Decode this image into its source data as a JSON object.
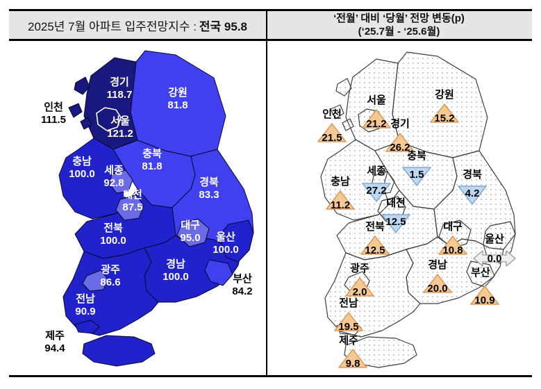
{
  "header": {
    "left": {
      "prefix": "2025년 7월 아파트 입주전망지수 : ",
      "bold": "전국 95.8"
    },
    "right": {
      "line1": "‘전월’ 대비 ‘당월’ 전망 변동(p)",
      "line2": "(‘25.7월 - ‘25.6월)"
    }
  },
  "colors": {
    "tier_navy": "#18187E",
    "tier_dark": "#2222CC",
    "tier_bright": "#4040F0",
    "tier_light": "#6B6BE8",
    "up_fill": "#F6C893",
    "up_stroke": "#DB9A55",
    "down_fill": "#BFD8F2",
    "down_stroke": "#82A9D2",
    "flat_fill": "#EEEEEE",
    "flat_stroke": "#999999",
    "header_bg": "#E6E6E6",
    "map_stroke_left": "#06062E",
    "map_stroke_right": "#3F3F3F",
    "dot_color": "#9AA7B8",
    "label_white": "#FFFFFF",
    "label_black": "#000000"
  },
  "chart_data": [
    {
      "type": "choropleth-map",
      "title": "2025년 7월 아파트 입주전망지수 : 전국 95.8",
      "national_value": 95.8,
      "regions": [
        {
          "id": "gangwon",
          "name": "강원",
          "value": "81.8",
          "tier": "bright",
          "label_color": "white"
        },
        {
          "id": "gyeonggi",
          "name": "경기",
          "value": "118.7",
          "tier": "navy",
          "label_color": "white"
        },
        {
          "id": "chungbuk",
          "name": "충북",
          "value": "81.8",
          "tier": "bright",
          "label_color": "white"
        },
        {
          "id": "chungnam",
          "name": "충남",
          "value": "100.0",
          "tier": "dark",
          "label_color": "white"
        },
        {
          "id": "gyeongbuk",
          "name": "경북",
          "value": "83.3",
          "tier": "bright",
          "label_color": "white"
        },
        {
          "id": "jeonbuk",
          "name": "전북",
          "value": "100.0",
          "tier": "dark",
          "label_color": "white"
        },
        {
          "id": "gyeongnam",
          "name": "경남",
          "value": "100.0",
          "tier": "dark",
          "label_color": "white"
        },
        {
          "id": "jeonnam",
          "name": "전남",
          "value": "90.9",
          "tier": "dark",
          "label_color": "white"
        },
        {
          "id": "sejong",
          "name": "세종",
          "value": "92.8",
          "tier": "light",
          "label_color": "white"
        },
        {
          "id": "daejeon",
          "name": "대전",
          "value": "87.5",
          "tier": "light",
          "label_color": "white"
        },
        {
          "id": "daegu",
          "name": "대구",
          "value": "95.0",
          "tier": "light",
          "label_color": "white"
        },
        {
          "id": "ulsan",
          "name": "울산",
          "value": "100.0",
          "tier": "dark",
          "label_color": "white"
        },
        {
          "id": "busan",
          "name": "부산",
          "value": "84.2",
          "tier": "bright",
          "label_color": "black"
        },
        {
          "id": "gwangju",
          "name": "광주",
          "value": "86.6",
          "tier": "light",
          "label_color": "white"
        },
        {
          "id": "incheon",
          "name": "인천",
          "value": "111.5",
          "tier": "navy",
          "label_color": "black"
        },
        {
          "id": "jeju",
          "name": "제주",
          "value": "94.4",
          "tier": "dark",
          "label_color": "black"
        },
        {
          "id": "seoul",
          "name": "서울",
          "value": "121.2",
          "tier": "navy",
          "label_color": "white"
        }
      ]
    },
    {
      "type": "symbol-map",
      "title": "‘전월’ 대비 ‘당월’ 전망 변동(p) (‘25.7월 - ‘25.6월)",
      "regions": [
        {
          "id": "gangwon",
          "name": "강원",
          "value": "15.2",
          "direction": "up"
        },
        {
          "id": "gyeonggi",
          "name": "경기",
          "value": "26.2",
          "direction": "up"
        },
        {
          "id": "chungbuk",
          "name": "충북",
          "value": "1.5",
          "direction": "down"
        },
        {
          "id": "chungnam",
          "name": "충남",
          "value": "11.2",
          "direction": "up"
        },
        {
          "id": "gyeongbuk",
          "name": "경북",
          "value": "4.2",
          "direction": "down"
        },
        {
          "id": "jeonbuk",
          "name": "전북",
          "value": "12.5",
          "direction": "up"
        },
        {
          "id": "gyeongnam",
          "name": "경남",
          "value": "20.0",
          "direction": "up"
        },
        {
          "id": "jeonnam",
          "name": "전남",
          "value": "19.5",
          "direction": "up"
        },
        {
          "id": "sejong",
          "name": "세종",
          "value": "27.2",
          "direction": "down"
        },
        {
          "id": "daejeon",
          "name": "대전",
          "value": "12.5",
          "direction": "down"
        },
        {
          "id": "daegu",
          "name": "대구",
          "value": "10.8",
          "direction": "up"
        },
        {
          "id": "ulsan",
          "name": "울산",
          "value": "0.0",
          "direction": "flat"
        },
        {
          "id": "busan",
          "name": "부산",
          "value": "10.9",
          "direction": "up"
        },
        {
          "id": "gwangju",
          "name": "광주",
          "value": "2.0",
          "direction": "up"
        },
        {
          "id": "incheon",
          "name": "인천",
          "value": "21.5",
          "direction": "up"
        },
        {
          "id": "jeju",
          "name": "제주",
          "value": "9.8",
          "direction": "up"
        },
        {
          "id": "seoul",
          "name": "서울",
          "value": "21.2",
          "direction": "up"
        }
      ]
    }
  ]
}
